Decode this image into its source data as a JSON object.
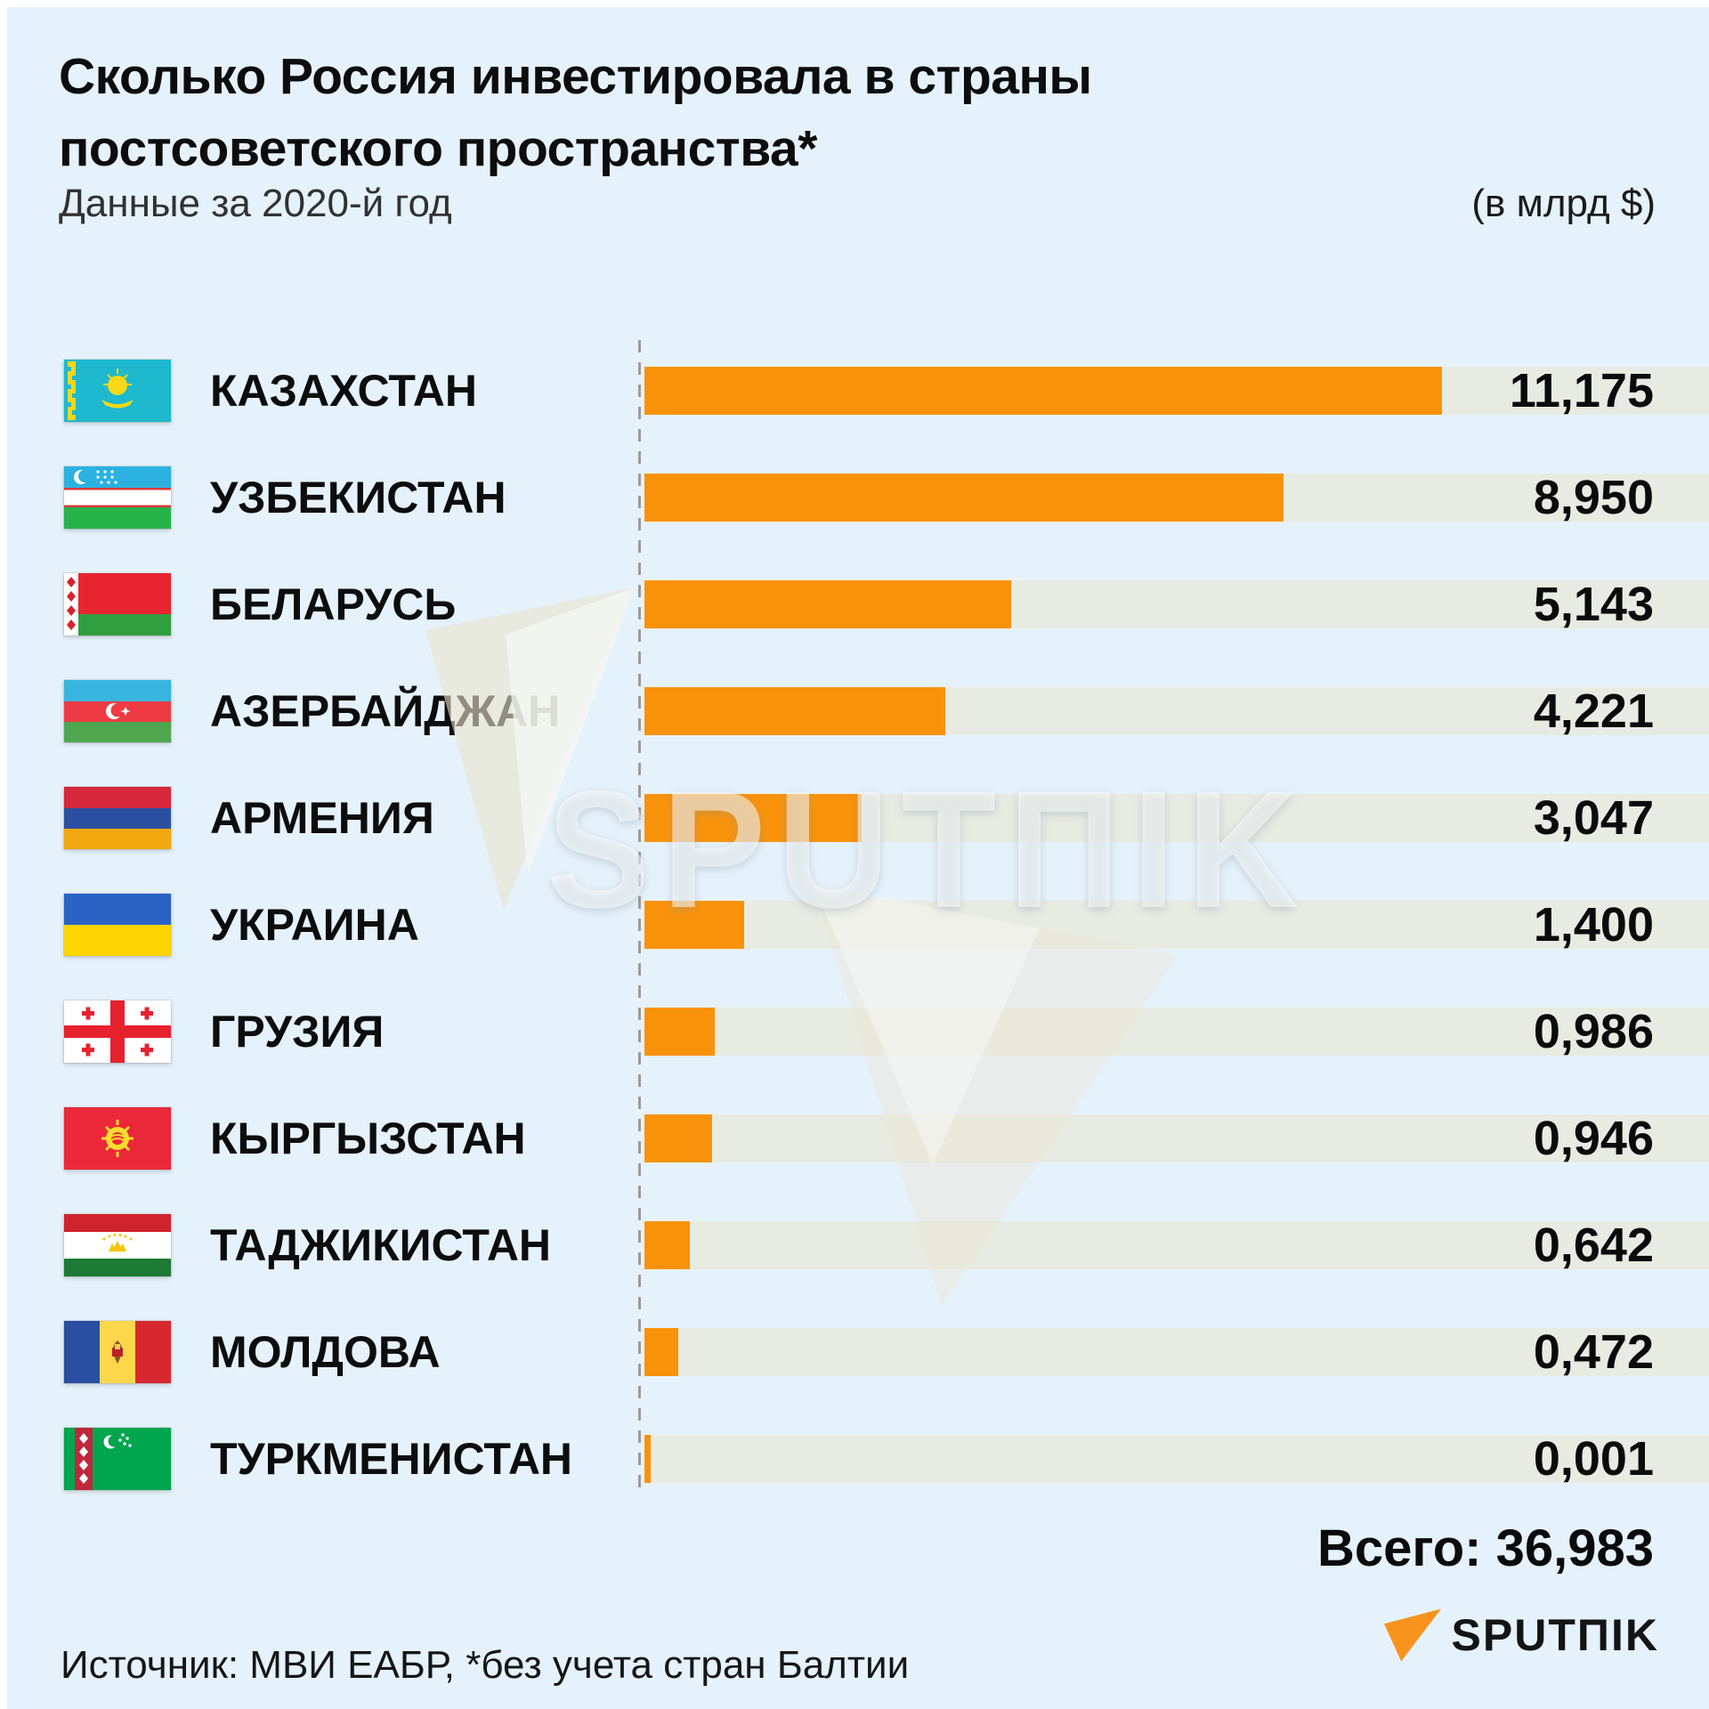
{
  "header": {
    "title": "Сколько Россия инвестировала в страны постсоветского пространства*",
    "subtitle": "Данные за 2020-й год",
    "unit_note": "(в млрд $)"
  },
  "chart_data": {
    "type": "bar",
    "orientation": "horizontal",
    "title": "Сколько Россия инвестировала в страны постсоветского пространства*",
    "subtitle": "Данные за 2020-й год",
    "unit": "млрд $",
    "year": "2020",
    "categories": [
      "КАЗАХСТАН",
      "УЗБЕКИСТАН",
      "БЕЛАРУСЬ",
      "АЗЕРБАЙДЖАН",
      "АРМЕНИЯ",
      "УКРАИНА",
      "ГРУЗИЯ",
      "КЫРГЫЗСТАН",
      "ТАДЖИКИСТАН",
      "МОЛДОВА",
      "ТУРКМЕНИСТАН"
    ],
    "values": [
      11.175,
      8.95,
      5.143,
      4.221,
      3.047,
      1.4,
      0.986,
      0.946,
      0.642,
      0.472,
      0.001
    ],
    "value_labels": [
      "11,175",
      "8,950",
      "5,143",
      "4,221",
      "3,047",
      "1,400",
      "0,986",
      "0,946",
      "0,642",
      "0,472",
      "0,001"
    ],
    "flags": [
      "kazakhstan",
      "uzbekistan",
      "belarus",
      "azerbaijan",
      "armenia",
      "ukraine",
      "georgia",
      "kyrgyzstan",
      "tajikistan",
      "moldova",
      "turkmenistan"
    ],
    "total": 36.983,
    "total_label": "Всего: 36,983",
    "xlim": [
      0,
      14.95
    ],
    "bar_color": "#F9920B",
    "track_color": "#E8EBE2",
    "grid": "dashed zero baseline only",
    "legend": "none"
  },
  "watermark": {
    "text": "SPUTΠIK"
  },
  "footer": {
    "source": "Источник: МВИ ЕАБР, *без учета стран Балтии",
    "brand": "SPUTΠIK"
  },
  "colors": {
    "background": "#E6F2FB",
    "bar": "#F9920B",
    "track": "#E8EBE2",
    "text": "#0D0D0D",
    "accent_orange": "#F8941D"
  }
}
